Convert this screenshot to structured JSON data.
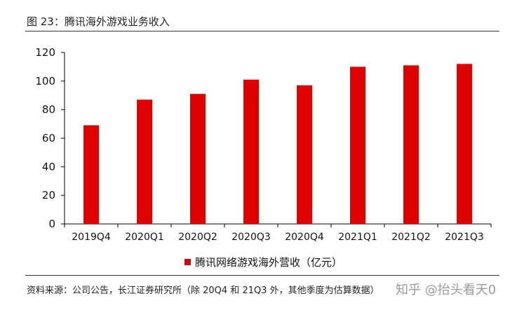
{
  "figure": {
    "title": "图 23：腾讯海外游戏业务收入",
    "source": "资料来源：公司公告，长江证券研究所（除 20Q4 和 21Q3 外，其他季度为估算数据）",
    "watermark": "知乎 @抬头看天0"
  },
  "chart_data": {
    "type": "bar",
    "categories": [
      "2019Q4",
      "2020Q1",
      "2020Q2",
      "2020Q3",
      "2020Q4",
      "2021Q1",
      "2021Q2",
      "2021Q3"
    ],
    "series": [
      {
        "name": "腾讯网络游戏海外营收（亿元）",
        "values": [
          69,
          87,
          91,
          101,
          97,
          110,
          111,
          112
        ],
        "color": "#e00000"
      }
    ],
    "ylim": [
      0,
      120
    ],
    "yticks": [
      0,
      20,
      40,
      60,
      80,
      100,
      120
    ],
    "grid": false,
    "legend": "bottom-center"
  }
}
